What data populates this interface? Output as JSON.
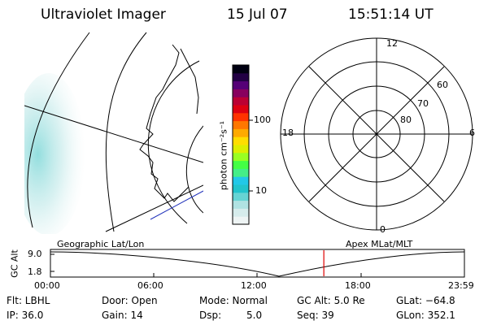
{
  "header": {
    "instrument": "Ultraviolet Imager",
    "date": "15 Jul 07",
    "time": "15:51:14 UT"
  },
  "geo_panel": {
    "label": "Geographic Lat/Lon"
  },
  "polar_panel": {
    "label": "Apex MLat/MLT",
    "mlt_labels": {
      "top": "12",
      "right": "6",
      "bottom": "0",
      "left": "18"
    },
    "lat_labels": [
      "60",
      "70",
      "80"
    ]
  },
  "colorbar": {
    "unit_label": "photon cm⁻²s⁻¹",
    "tick_labels": [
      "100",
      "10"
    ],
    "colors": [
      "#eef4f4",
      "#d6ecec",
      "#b0e2e2",
      "#66d4d4",
      "#22c4cc",
      "#22c8e8",
      "#44ee88",
      "#44ff44",
      "#99ff22",
      "#ddee00",
      "#ffdd00",
      "#ffaa00",
      "#ff7700",
      "#ff3300",
      "#dd0011",
      "#bb0033",
      "#88005e",
      "#550077",
      "#220044",
      "#000011"
    ]
  },
  "altitude_strip": {
    "axis_label": "GC Alt",
    "y_ticks": [
      "9.0",
      "1.8"
    ],
    "x_ticks": [
      "00:00",
      "06:00",
      "12:00",
      "18:00",
      "23:59"
    ],
    "marker_color": "#dd0000",
    "marker_time_hours": 15.85
  },
  "info": {
    "flt": "Flt: LBHL",
    "ip": "IP: 36.0",
    "door": "Door: Open",
    "gain": "Gain: 14",
    "mode": "Mode: Normal",
    "dsp": "Dsp:",
    "dsp_value": "5.0",
    "gcalt": "GC Alt: 5.0 Re",
    "seq": "Seq: 39",
    "glat": "GLat: −64.8",
    "glon": "GLon: 352.1"
  }
}
